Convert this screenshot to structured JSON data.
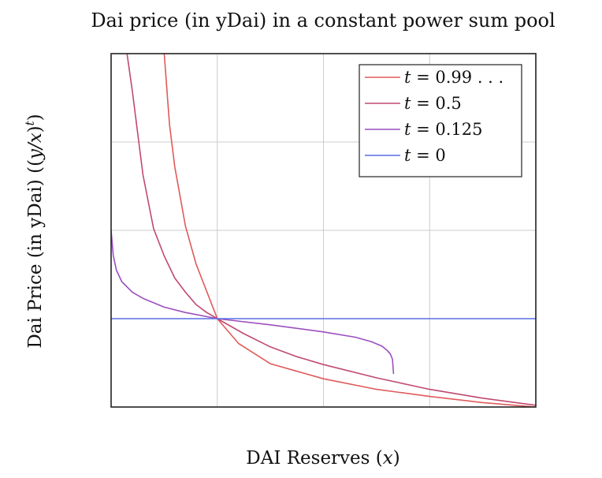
{
  "chart_data": {
    "type": "line",
    "title": "Dai price (in yDai) in a constant power sum pool",
    "xlabel": "DAI Reserves (x)",
    "ylabel": "Dai Price (in yDai) ((y/x)^t)",
    "xlim": [
      0,
      4
    ],
    "ylim": [
      0,
      4
    ],
    "grid": true,
    "legend_position": "top-right",
    "ticks_labeled": false,
    "series": [
      {
        "name": "t = 0.99...",
        "color": "#e05a5a",
        "x": [
          0.5,
          0.55,
          0.6,
          0.7,
          0.8,
          0.9,
          1.0,
          1.2,
          1.5,
          2.0,
          2.5,
          3.0,
          3.5,
          4.0
        ],
        "y": [
          4.0,
          3.2,
          2.72,
          2.05,
          1.62,
          1.31,
          1.0,
          0.72,
          0.49,
          0.32,
          0.2,
          0.12,
          0.05,
          0.0
        ]
      },
      {
        "name": "t = 0.5",
        "color": "#c04a6e",
        "x": [
          0.15,
          0.2,
          0.3,
          0.4,
          0.5,
          0.6,
          0.7,
          0.8,
          0.9,
          1.0,
          1.25,
          1.5,
          1.75,
          2.0,
          2.5,
          3.0,
          3.5,
          4.0
        ],
        "y": [
          4.0,
          3.58,
          2.63,
          2.02,
          1.71,
          1.46,
          1.3,
          1.16,
          1.07,
          1.0,
          0.83,
          0.68,
          0.57,
          0.48,
          0.33,
          0.2,
          0.1,
          0.02
        ]
      },
      {
        "name": "t = 0.125",
        "color": "#9b4fc0",
        "x": [
          0.0,
          0.02,
          0.05,
          0.1,
          0.2,
          0.3,
          0.5,
          0.7,
          1.0,
          1.5,
          2.0,
          2.3,
          2.45,
          2.55,
          2.6,
          2.63,
          2.65,
          2.66
        ],
        "y": [
          2.0,
          1.72,
          1.55,
          1.42,
          1.3,
          1.23,
          1.13,
          1.07,
          1.0,
          0.93,
          0.85,
          0.79,
          0.74,
          0.69,
          0.64,
          0.6,
          0.54,
          0.38
        ]
      },
      {
        "name": "t = 0",
        "color": "#5a6fe6",
        "x": [
          0,
          4
        ],
        "y": [
          1.0,
          1.0
        ]
      }
    ]
  },
  "legend": {
    "items": [
      {
        "var": "t",
        "eq": "=",
        "val": "0.99 . . ."
      },
      {
        "var": "t",
        "eq": "=",
        "val": "0.5"
      },
      {
        "var": "t",
        "eq": "=",
        "val": "0.125"
      },
      {
        "var": "t",
        "eq": "=",
        "val": "0"
      }
    ]
  },
  "labels": {
    "xlabel_text": "DAI Reserves (",
    "xlabel_var": "x",
    "xlabel_close": ")",
    "ylabel_text": "Dai Price (in yDai) ((",
    "ylabel_var": "y/x",
    "ylabel_close": ")",
    "ylabel_exp": "t",
    "ylabel_tail": ")"
  }
}
